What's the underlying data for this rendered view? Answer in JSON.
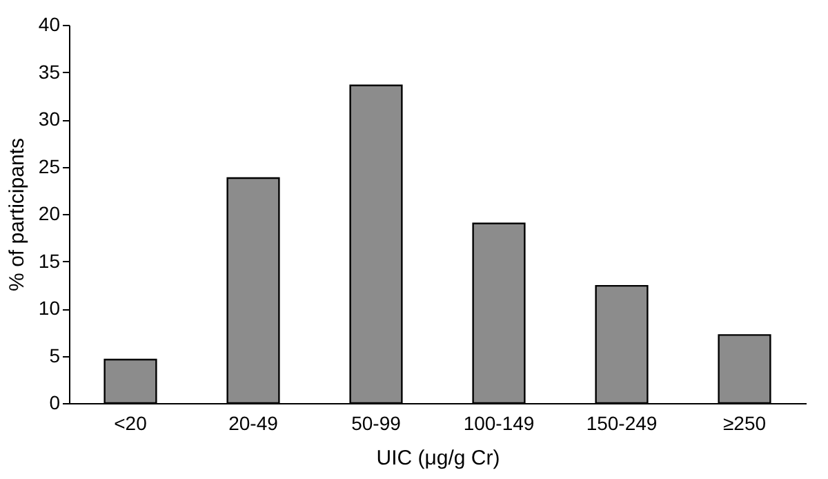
{
  "chart_data": {
    "type": "bar",
    "xlabel": "UIC (μg/g Cr)",
    "ylabel": "% of participants",
    "categories": [
      "<20",
      "20-49",
      "50-99",
      "100-149",
      "150-249",
      "≥250"
    ],
    "values": [
      4.6,
      23.8,
      33.6,
      19.0,
      12.4,
      7.2
    ],
    "color": "#8c8c8c",
    "ylim": [
      0,
      40
    ],
    "yticks": [
      0,
      5,
      10,
      15,
      20,
      25,
      30,
      35,
      40
    ],
    "grid": false
  }
}
